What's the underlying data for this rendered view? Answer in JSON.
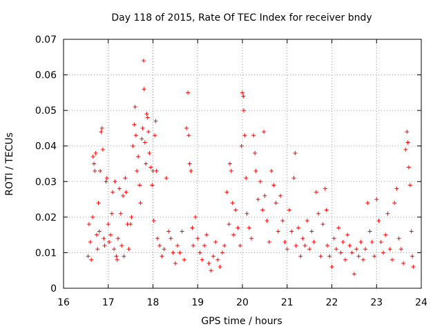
{
  "chart_data": {
    "type": "scatter",
    "title": "Day 118 of 2015, Rate Of TEC Index for receiver bndy",
    "xlabel": "GPS time / hours",
    "ylabel": "ROTI / TECUs",
    "xlim": [
      16,
      24
    ],
    "ylim": [
      0,
      0.07
    ],
    "x_ticks": [
      16,
      17,
      18,
      19,
      20,
      21,
      22,
      23,
      24
    ],
    "y_ticks": [
      0,
      0.01,
      0.02,
      0.03,
      0.04,
      0.05,
      0.06,
      0.07
    ],
    "x_tick_labels": [
      "16",
      "17",
      "18",
      "19",
      "20",
      "21",
      "22",
      "23",
      "24"
    ],
    "y_tick_labels": [
      "0",
      "0.01",
      "0.02",
      "0.03",
      "0.04",
      "0.05",
      "0.06",
      "0.07"
    ],
    "grid": true,
    "marker": "+",
    "color": "#ff0000",
    "series": [
      {
        "name": "ROTI",
        "points": [
          [
            16.55,
            0.009
          ],
          [
            16.57,
            0.018
          ],
          [
            16.6,
            0.013
          ],
          [
            16.62,
            0.008
          ],
          [
            16.65,
            0.02
          ],
          [
            16.66,
            0.037
          ],
          [
            16.68,
            0.035
          ],
          [
            16.7,
            0.033
          ],
          [
            16.72,
            0.038
          ],
          [
            16.74,
            0.015
          ],
          [
            16.76,
            0.011
          ],
          [
            16.78,
            0.024
          ],
          [
            16.8,
            0.016
          ],
          [
            16.82,
            0.033
          ],
          [
            16.84,
            0.044
          ],
          [
            16.86,
            0.045
          ],
          [
            16.88,
            0.039
          ],
          [
            16.9,
            0.014
          ],
          [
            16.92,
            0.012
          ],
          [
            16.95,
            0.03
          ],
          [
            16.97,
            0.031
          ],
          [
            17.0,
            0.018
          ],
          [
            17.02,
            0.013
          ],
          [
            17.05,
            0.015
          ],
          [
            17.08,
            0.021
          ],
          [
            17.1,
            0.027
          ],
          [
            17.13,
            0.011
          ],
          [
            17.15,
            0.03
          ],
          [
            17.18,
            0.009
          ],
          [
            17.2,
            0.008
          ],
          [
            17.22,
            0.014
          ],
          [
            17.25,
            0.028
          ],
          [
            17.28,
            0.021
          ],
          [
            17.3,
            0.012
          ],
          [
            17.33,
            0.026
          ],
          [
            17.35,
            0.009
          ],
          [
            17.38,
            0.031
          ],
          [
            17.4,
            0.027
          ],
          [
            17.43,
            0.018
          ],
          [
            17.46,
            0.011
          ],
          [
            17.5,
            0.018
          ],
          [
            17.52,
            0.02
          ],
          [
            17.55,
            0.04
          ],
          [
            17.58,
            0.046
          ],
          [
            17.6,
            0.051
          ],
          [
            17.62,
            0.043
          ],
          [
            17.64,
            0.033
          ],
          [
            17.67,
            0.037
          ],
          [
            17.7,
            0.029
          ],
          [
            17.72,
            0.024
          ],
          [
            17.75,
            0.042
          ],
          [
            17.77,
            0.045
          ],
          [
            17.79,
            0.064
          ],
          [
            17.8,
            0.056
          ],
          [
            17.82,
            0.041
          ],
          [
            17.84,
            0.035
          ],
          [
            17.86,
            0.049
          ],
          [
            17.88,
            0.048
          ],
          [
            17.9,
            0.044
          ],
          [
            17.92,
            0.038
          ],
          [
            17.95,
            0.034
          ],
          [
            17.98,
            0.029
          ],
          [
            18.0,
            0.033
          ],
          [
            18.02,
            0.019
          ],
          [
            18.04,
            0.043
          ],
          [
            18.06,
            0.047
          ],
          [
            18.08,
            0.033
          ],
          [
            18.1,
            0.014
          ],
          [
            18.15,
            0.012
          ],
          [
            18.2,
            0.009
          ],
          [
            18.25,
            0.011
          ],
          [
            18.3,
            0.031
          ],
          [
            18.35,
            0.016
          ],
          [
            18.4,
            0.014
          ],
          [
            18.45,
            0.01
          ],
          [
            18.5,
            0.007
          ],
          [
            18.55,
            0.012
          ],
          [
            18.6,
            0.01
          ],
          [
            18.65,
            0.016
          ],
          [
            18.7,
            0.008
          ],
          [
            18.75,
            0.045
          ],
          [
            18.78,
            0.055
          ],
          [
            18.8,
            0.043
          ],
          [
            18.82,
            0.035
          ],
          [
            18.85,
            0.033
          ],
          [
            18.88,
            0.017
          ],
          [
            18.9,
            0.012
          ],
          [
            18.95,
            0.02
          ],
          [
            19.0,
            0.014
          ],
          [
            19.05,
            0.01
          ],
          [
            19.1,
            0.008
          ],
          [
            19.15,
            0.012
          ],
          [
            19.2,
            0.015
          ],
          [
            19.25,
            0.007
          ],
          [
            19.3,
            0.005
          ],
          [
            19.35,
            0.009
          ],
          [
            19.4,
            0.013
          ],
          [
            19.45,
            0.008
          ],
          [
            19.5,
            0.006
          ],
          [
            19.55,
            0.01
          ],
          [
            19.6,
            0.012
          ],
          [
            19.65,
            0.027
          ],
          [
            19.7,
            0.018
          ],
          [
            19.72,
            0.035
          ],
          [
            19.75,
            0.033
          ],
          [
            19.78,
            0.024
          ],
          [
            19.8,
            0.015
          ],
          [
            19.85,
            0.022
          ],
          [
            19.9,
            0.017
          ],
          [
            19.95,
            0.012
          ],
          [
            19.98,
            0.04
          ],
          [
            20.0,
            0.055
          ],
          [
            20.02,
            0.054
          ],
          [
            20.03,
            0.05
          ],
          [
            20.05,
            0.043
          ],
          [
            20.08,
            0.031
          ],
          [
            20.1,
            0.021
          ],
          [
            20.15,
            0.017
          ],
          [
            20.2,
            0.014
          ],
          [
            20.25,
            0.043
          ],
          [
            20.28,
            0.038
          ],
          [
            20.3,
            0.033
          ],
          [
            20.35,
            0.025
          ],
          [
            20.4,
            0.03
          ],
          [
            20.45,
            0.022
          ],
          [
            20.48,
            0.044
          ],
          [
            20.5,
            0.026
          ],
          [
            20.55,
            0.019
          ],
          [
            20.6,
            0.013
          ],
          [
            20.65,
            0.033
          ],
          [
            20.7,
            0.029
          ],
          [
            20.75,
            0.024
          ],
          [
            20.8,
            0.016
          ],
          [
            20.85,
            0.026
          ],
          [
            20.9,
            0.019
          ],
          [
            20.95,
            0.013
          ],
          [
            21.0,
            0.011
          ],
          [
            21.05,
            0.022
          ],
          [
            21.1,
            0.016
          ],
          [
            21.15,
            0.031
          ],
          [
            21.18,
            0.038
          ],
          [
            21.2,
            0.012
          ],
          [
            21.25,
            0.017
          ],
          [
            21.3,
            0.009
          ],
          [
            21.35,
            0.014
          ],
          [
            21.4,
            0.012
          ],
          [
            21.45,
            0.019
          ],
          [
            21.5,
            0.011
          ],
          [
            21.55,
            0.016
          ],
          [
            21.6,
            0.013
          ],
          [
            21.65,
            0.027
          ],
          [
            21.7,
            0.021
          ],
          [
            21.75,
            0.009
          ],
          [
            21.8,
            0.018
          ],
          [
            21.85,
            0.028
          ],
          [
            21.88,
            0.022
          ],
          [
            21.9,
            0.012
          ],
          [
            21.95,
            0.009
          ],
          [
            22.0,
            0.006
          ],
          [
            22.05,
            0.014
          ],
          [
            22.1,
            0.011
          ],
          [
            22.15,
            0.017
          ],
          [
            22.2,
            0.01
          ],
          [
            22.25,
            0.013
          ],
          [
            22.3,
            0.008
          ],
          [
            22.35,
            0.015
          ],
          [
            22.4,
            0.012
          ],
          [
            22.45,
            0.01
          ],
          [
            22.5,
            0.004
          ],
          [
            22.55,
            0.011
          ],
          [
            22.6,
            0.009
          ],
          [
            22.65,
            0.013
          ],
          [
            22.7,
            0.008
          ],
          [
            22.75,
            0.011
          ],
          [
            22.8,
            0.024
          ],
          [
            22.85,
            0.016
          ],
          [
            22.9,
            0.013
          ],
          [
            22.95,
            0.009
          ],
          [
            23.0,
            0.025
          ],
          [
            23.05,
            0.019
          ],
          [
            23.1,
            0.013
          ],
          [
            23.15,
            0.01
          ],
          [
            23.2,
            0.015
          ],
          [
            23.25,
            0.021
          ],
          [
            23.3,
            0.011
          ],
          [
            23.35,
            0.008
          ],
          [
            23.4,
            0.024
          ],
          [
            23.45,
            0.028
          ],
          [
            23.5,
            0.014
          ],
          [
            23.55,
            0.011
          ],
          [
            23.6,
            0.007
          ],
          [
            23.65,
            0.039
          ],
          [
            23.68,
            0.044
          ],
          [
            23.7,
            0.041
          ],
          [
            23.72,
            0.034
          ],
          [
            23.75,
            0.029
          ],
          [
            23.78,
            0.016
          ],
          [
            23.8,
            0.009
          ],
          [
            23.82,
            0.006
          ]
        ]
      }
    ]
  }
}
